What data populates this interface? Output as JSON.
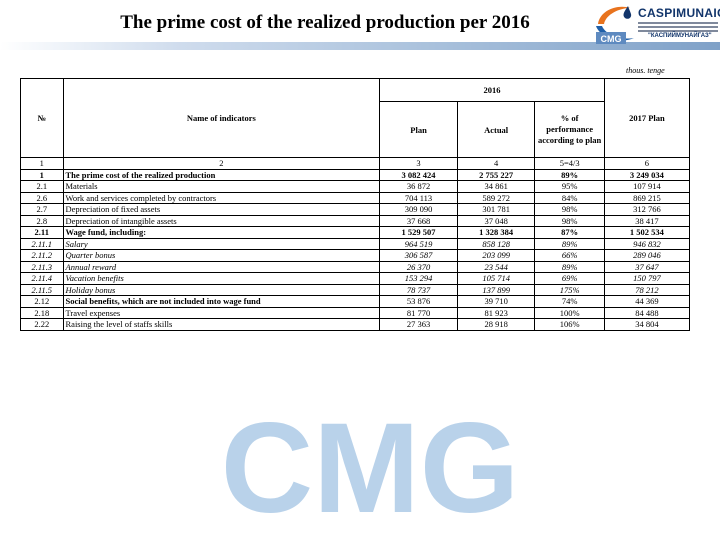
{
  "title": "The prime cost of the realized production per 2016",
  "logo": {
    "name": "CASPIMUNAIGAS",
    "badge": "CMG",
    "quote": "\"КАСПИЙМУНАЙГАЗ\""
  },
  "watermark_text": "CMG",
  "units": "thous. tenge",
  "table": {
    "headers": {
      "no": "№",
      "name": "Name of indicators",
      "year": "2016",
      "plan": "Plan",
      "actual": "Actual",
      "perf": "% of performance according to plan",
      "plan2017": "2017 Plan"
    },
    "index_row": [
      "1",
      "2",
      "3",
      "4",
      "5=4/3",
      "6"
    ],
    "rows": [
      {
        "no": "1",
        "name": "The prime cost of the realized production",
        "plan": "3 082 424",
        "actual": "2 755 227",
        "perf": "89%",
        "plan2017": "3 249 034",
        "style": "bold"
      },
      {
        "no": "2.1",
        "name": "Materials",
        "plan": "36 872",
        "actual": "34 861",
        "perf": "95%",
        "plan2017": "107 914",
        "style": "normal"
      },
      {
        "no": "2.6",
        "name": "Work and services completed by contractors",
        "plan": "704 113",
        "actual": "589 272",
        "perf": "84%",
        "plan2017": "869 215",
        "style": "normal"
      },
      {
        "no": "2.7",
        "name": "Depreciation of fixed assets",
        "plan": "309 090",
        "actual": "301 781",
        "perf": "98%",
        "plan2017": "312 766",
        "style": "normal"
      },
      {
        "no": "2.8",
        "name": "Depreciation of intangible assets",
        "plan": "37 668",
        "actual": "37 048",
        "perf": "98%",
        "plan2017": "38 417",
        "style": "normal"
      },
      {
        "no": "2.11",
        "name": "Wage fund, including:",
        "plan": "1 529 507",
        "actual": "1 328 384",
        "perf": "87%",
        "plan2017": "1 502 534",
        "style": "bold"
      },
      {
        "no": "2.11.1",
        "name": "Salary",
        "plan": "964 519",
        "actual": "858 128",
        "perf": "89%",
        "plan2017": "946 832",
        "style": "italic"
      },
      {
        "no": "2.11.2",
        "name": "Quarter bonus",
        "plan": "306 587",
        "actual": "203 099",
        "perf": "66%",
        "plan2017": "289 046",
        "style": "italic"
      },
      {
        "no": "2.11.3",
        "name": "Annual reward",
        "plan": "26 370",
        "actual": "23 544",
        "perf": "89%",
        "plan2017": "37 647",
        "style": "italic"
      },
      {
        "no": "2.11.4",
        "name": "Vacation benefits",
        "plan": "153 294",
        "actual": "105 714",
        "perf": "69%",
        "plan2017": "150 797",
        "style": "italic"
      },
      {
        "no": "2.11.5",
        "name": "Holiday bonus",
        "plan": "78 737",
        "actual": "137 899",
        "perf": "175%",
        "plan2017": "78 212",
        "style": "italic"
      },
      {
        "no": "2.12",
        "name": "Social benefits, which are not included into wage fund",
        "plan": "53 876",
        "actual": "39 710",
        "perf": "74%",
        "plan2017": "44 369",
        "style": "bold-name"
      },
      {
        "no": "2.18",
        "name": "Travel expenses",
        "plan": "81 770",
        "actual": "81 923",
        "perf": "100%",
        "plan2017": "84 488",
        "style": "normal"
      },
      {
        "no": "2.22",
        "name": "Raising the level of staffs skills",
        "plan": "27 363",
        "actual": "28 918",
        "perf": "106%",
        "plan2017": "34 804",
        "style": "normal"
      }
    ]
  },
  "colors": {
    "brand_blue": "#12356b",
    "logo_orange": "#e8731e",
    "header_band": "#a9c1dc",
    "watermark": "#b9d2ea"
  }
}
